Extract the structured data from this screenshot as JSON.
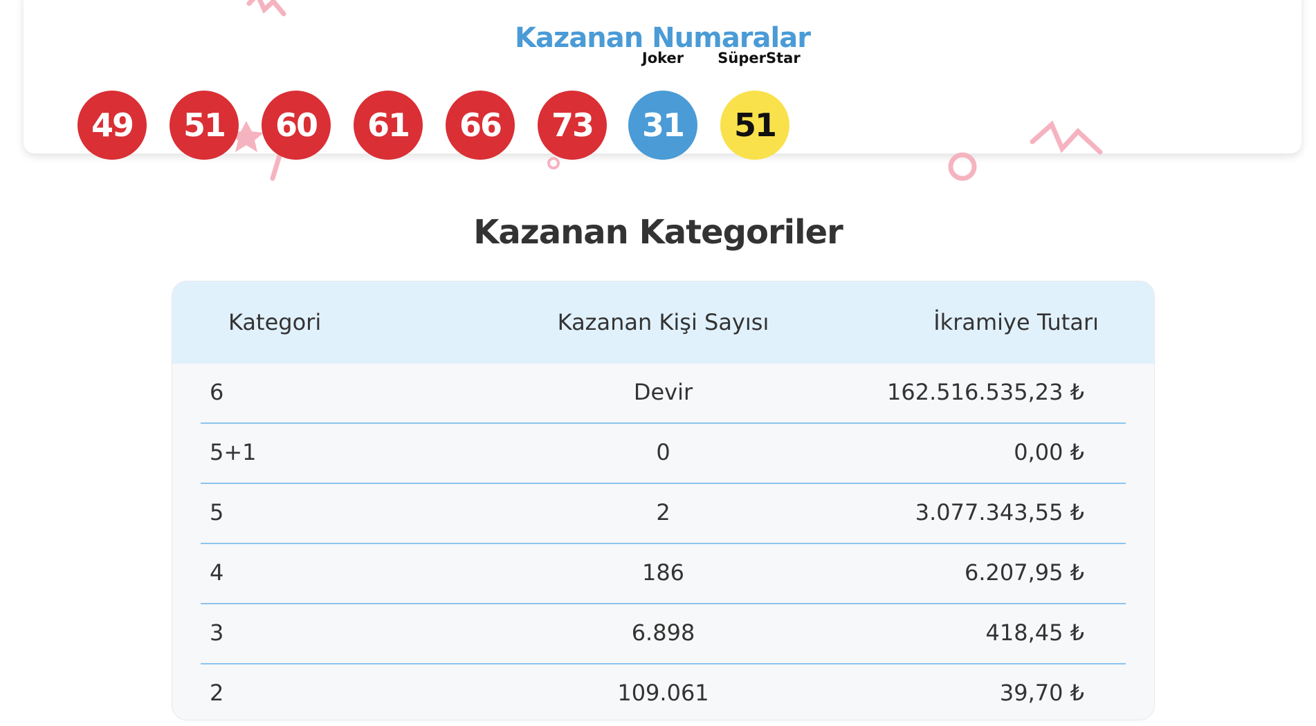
{
  "numbers_title": "Kazanan Numaralar",
  "balls": [
    {
      "value": "49",
      "type": "main",
      "color": "#d92f35"
    },
    {
      "value": "51",
      "type": "main",
      "color": "#d92f35"
    },
    {
      "value": "60",
      "type": "main",
      "color": "#d92f35"
    },
    {
      "value": "61",
      "type": "main",
      "color": "#d92f35"
    },
    {
      "value": "66",
      "type": "main",
      "color": "#d92f35"
    },
    {
      "value": "73",
      "type": "main",
      "color": "#d92f35"
    },
    {
      "value": "31",
      "type": "joker",
      "label": "Joker",
      "color": "#4a9bd6"
    },
    {
      "value": "51",
      "type": "superstar",
      "label": "SüperStar",
      "color": "#f9e14c"
    }
  ],
  "categories_title": "Kazanan Kategoriler",
  "table": {
    "headers": [
      "Kategori",
      "Kazanan Kişi Sayısı",
      "İkramiye Tutarı"
    ],
    "rows": [
      [
        "6",
        "Devir",
        "162.516.535,23 ₺"
      ],
      [
        "5+1",
        "0",
        "0,00 ₺"
      ],
      [
        "5",
        "2",
        "3.077.343,55 ₺"
      ],
      [
        "4",
        "186",
        "6.207,95 ₺"
      ],
      [
        "3",
        "6.898",
        "418,45 ₺"
      ],
      [
        "2",
        "109.061",
        "39,70 ₺"
      ]
    ]
  }
}
